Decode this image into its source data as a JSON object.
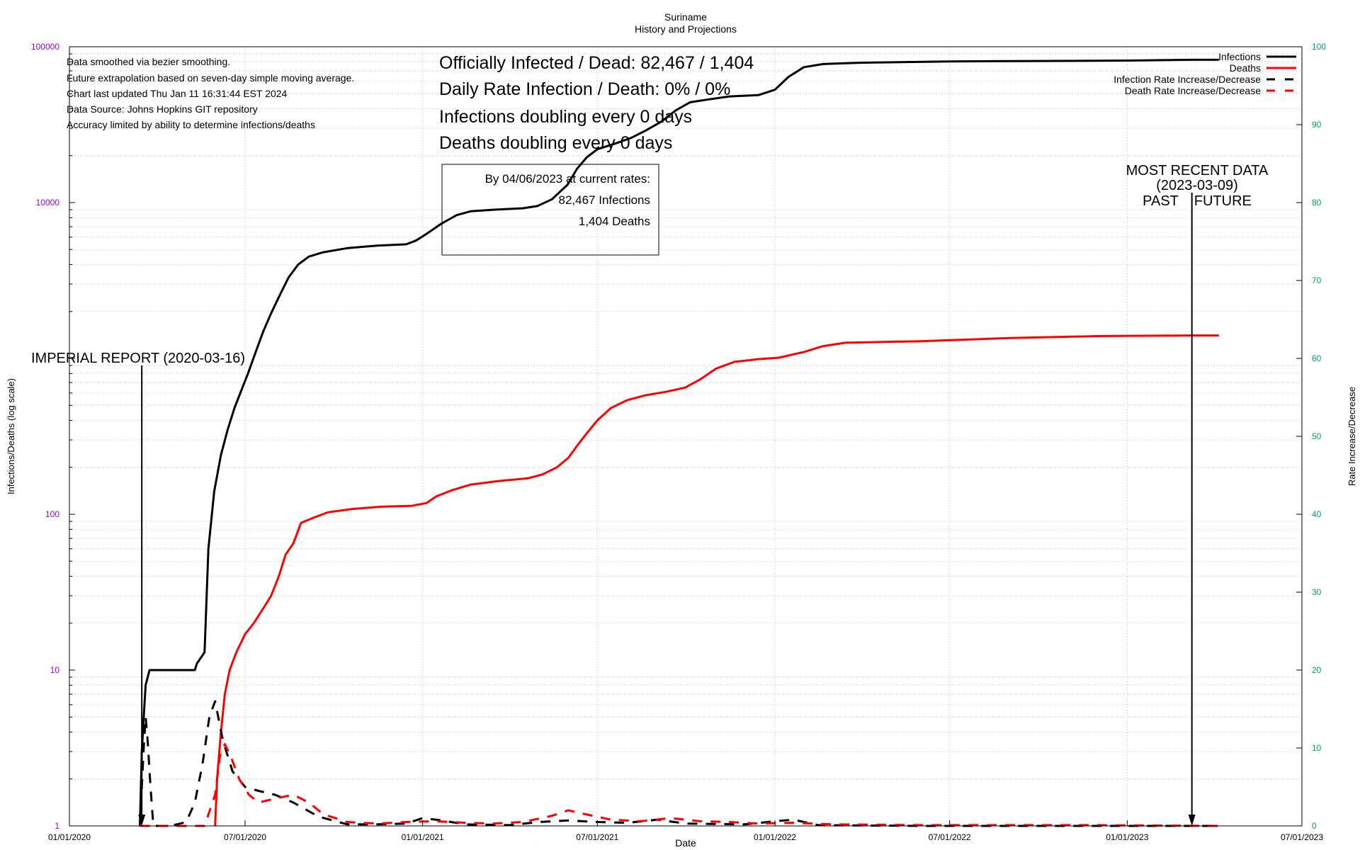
{
  "chart_data": {
    "type": "line",
    "title": "Suriname",
    "subtitle": "History and Projections",
    "xlabel": "Date",
    "ylabel": "Infections/Deaths (log scale)",
    "y2label": "Rate Increase/Decrease",
    "y_scale": "log",
    "ylim": [
      1,
      100000
    ],
    "y2lim": [
      0,
      100
    ],
    "xlim": [
      "2020-01-01",
      "2023-07-01"
    ],
    "x_ticks": [
      "01/01/2020",
      "07/01/2020",
      "01/01/2021",
      "07/01/2021",
      "01/01/2022",
      "07/01/2022",
      "01/01/2023",
      "07/01/2023"
    ],
    "y_ticks": [
      1,
      10,
      100,
      1000,
      10000,
      100000
    ],
    "y_tick_labels": [
      "1",
      "10",
      "100",
      "",
      "10000",
      "100000"
    ],
    "y2_ticks": [
      0,
      10,
      20,
      30,
      40,
      50,
      60,
      70,
      80,
      90,
      100
    ],
    "colors": {
      "infections": "#000000",
      "deaths": "#ff0000",
      "left_axis_ticks": "#9400d3",
      "right_axis_ticks": "#009e73"
    },
    "grid": true,
    "legend_position": "top-right",
    "series": [
      {
        "name": "Infections",
        "axis": "left",
        "style": "solid",
        "color": "#000000",
        "points": [
          [
            "2020-03-14",
            1
          ],
          [
            "2020-03-16",
            3
          ],
          [
            "2020-03-18",
            5
          ],
          [
            "2020-03-20",
            8
          ],
          [
            "2020-03-24",
            10
          ],
          [
            "2020-05-10",
            10
          ],
          [
            "2020-05-12",
            11
          ],
          [
            "2020-05-20",
            13
          ],
          [
            "2020-05-24",
            60
          ],
          [
            "2020-05-30",
            140
          ],
          [
            "2020-06-06",
            240
          ],
          [
            "2020-06-13",
            350
          ],
          [
            "2020-06-20",
            480
          ],
          [
            "2020-06-27",
            620
          ],
          [
            "2020-07-04",
            800
          ],
          [
            "2020-07-12",
            1100
          ],
          [
            "2020-07-20",
            1500
          ],
          [
            "2020-07-28",
            1950
          ],
          [
            "2020-08-06",
            2550
          ],
          [
            "2020-08-15",
            3300
          ],
          [
            "2020-08-25",
            4000
          ],
          [
            "2020-09-05",
            4500
          ],
          [
            "2020-09-20",
            4800
          ],
          [
            "2020-10-15",
            5100
          ],
          [
            "2020-11-15",
            5300
          ],
          [
            "2020-12-15",
            5400
          ],
          [
            "2020-12-25",
            5700
          ],
          [
            "2021-01-05",
            6300
          ],
          [
            "2021-01-20",
            7300
          ],
          [
            "2021-02-05",
            8300
          ],
          [
            "2021-02-20",
            8800
          ],
          [
            "2021-03-15",
            9000
          ],
          [
            "2021-04-15",
            9200
          ],
          [
            "2021-04-30",
            9500
          ],
          [
            "2021-05-15",
            10500
          ],
          [
            "2021-05-31",
            13000
          ],
          [
            "2021-06-10",
            16500
          ],
          [
            "2021-06-20",
            19500
          ],
          [
            "2021-07-01",
            22000
          ],
          [
            "2021-07-20",
            24000
          ],
          [
            "2021-08-05",
            26000
          ],
          [
            "2021-08-20",
            29000
          ],
          [
            "2021-09-05",
            33000
          ],
          [
            "2021-09-20",
            39000
          ],
          [
            "2021-10-05",
            44000
          ],
          [
            "2021-10-25",
            46000
          ],
          [
            "2021-11-15",
            48000
          ],
          [
            "2021-12-15",
            49000
          ],
          [
            "2022-01-01",
            53000
          ],
          [
            "2022-01-15",
            64000
          ],
          [
            "2022-01-31",
            74000
          ],
          [
            "2022-02-20",
            77500
          ],
          [
            "2022-04-01",
            79000
          ],
          [
            "2022-07-01",
            80500
          ],
          [
            "2022-10-01",
            81000
          ],
          [
            "2023-01-01",
            81500
          ],
          [
            "2023-03-09",
            82467
          ],
          [
            "2023-04-06",
            82467
          ]
        ]
      },
      {
        "name": "Deaths",
        "axis": "left",
        "style": "solid",
        "color": "#ff0000",
        "points": [
          [
            "2020-05-31",
            1
          ],
          [
            "2020-06-02",
            2
          ],
          [
            "2020-06-06",
            4
          ],
          [
            "2020-06-10",
            7
          ],
          [
            "2020-06-15",
            10
          ],
          [
            "2020-06-22",
            13
          ],
          [
            "2020-07-01",
            17
          ],
          [
            "2020-07-10",
            20
          ],
          [
            "2020-07-20",
            25
          ],
          [
            "2020-07-28",
            30
          ],
          [
            "2020-08-05",
            40
          ],
          [
            "2020-08-12",
            55
          ],
          [
            "2020-08-20",
            65
          ],
          [
            "2020-08-28",
            88
          ],
          [
            "2020-09-10",
            95
          ],
          [
            "2020-09-25",
            103
          ],
          [
            "2020-10-20",
            108
          ],
          [
            "2020-11-20",
            112
          ],
          [
            "2020-12-20",
            113
          ],
          [
            "2021-01-05",
            118
          ],
          [
            "2021-01-15",
            130
          ],
          [
            "2021-02-01",
            143
          ],
          [
            "2021-02-20",
            155
          ],
          [
            "2021-03-20",
            163
          ],
          [
            "2021-04-20",
            170
          ],
          [
            "2021-05-05",
            180
          ],
          [
            "2021-05-20",
            200
          ],
          [
            "2021-06-01",
            230
          ],
          [
            "2021-06-10",
            275
          ],
          [
            "2021-06-20",
            330
          ],
          [
            "2021-07-01",
            400
          ],
          [
            "2021-07-15",
            480
          ],
          [
            "2021-08-01",
            540
          ],
          [
            "2021-08-20",
            580
          ],
          [
            "2021-09-10",
            610
          ],
          [
            "2021-09-30",
            650
          ],
          [
            "2021-10-15",
            730
          ],
          [
            "2021-11-01",
            860
          ],
          [
            "2021-11-20",
            950
          ],
          [
            "2021-12-15",
            990
          ],
          [
            "2022-01-05",
            1010
          ],
          [
            "2022-01-31",
            1100
          ],
          [
            "2022-02-20",
            1200
          ],
          [
            "2022-03-15",
            1260
          ],
          [
            "2022-06-01",
            1290
          ],
          [
            "2022-09-01",
            1350
          ],
          [
            "2022-12-01",
            1390
          ],
          [
            "2023-03-09",
            1404
          ],
          [
            "2023-04-06",
            1404
          ]
        ]
      },
      {
        "name": "Infection Rate Increase/Decrease",
        "axis": "right",
        "style": "dashed",
        "color": "#000000",
        "points": [
          [
            "2020-03-14",
            0
          ],
          [
            "2020-03-16",
            5
          ],
          [
            "2020-03-18",
            10
          ],
          [
            "2020-03-20",
            14
          ],
          [
            "2020-03-22",
            11
          ],
          [
            "2020-03-25",
            5
          ],
          [
            "2020-03-28",
            0
          ],
          [
            "2020-04-15",
            0
          ],
          [
            "2020-05-01",
            0.5
          ],
          [
            "2020-05-10",
            3
          ],
          [
            "2020-05-18",
            8
          ],
          [
            "2020-05-25",
            14
          ],
          [
            "2020-05-31",
            16
          ],
          [
            "2020-06-08",
            11
          ],
          [
            "2020-06-18",
            7
          ],
          [
            "2020-07-01",
            5
          ],
          [
            "2020-07-15",
            4.5
          ],
          [
            "2020-08-01",
            4
          ],
          [
            "2020-08-20",
            3
          ],
          [
            "2020-09-15",
            1.2
          ],
          [
            "2020-10-15",
            0.2
          ],
          [
            "2020-11-15",
            0.2
          ],
          [
            "2020-12-15",
            0.3
          ],
          [
            "2021-01-01",
            1
          ],
          [
            "2021-01-15",
            0.8
          ],
          [
            "2021-02-15",
            0.2
          ],
          [
            "2021-04-01",
            0.1
          ],
          [
            "2021-05-01",
            0.5
          ],
          [
            "2021-06-01",
            0.7
          ],
          [
            "2021-07-01",
            0.5
          ],
          [
            "2021-08-01",
            0.4
          ],
          [
            "2021-09-01",
            0.8
          ],
          [
            "2021-10-01",
            0.3
          ],
          [
            "2021-12-01",
            0.2
          ],
          [
            "2022-01-01",
            0.6
          ],
          [
            "2022-01-20",
            0.8
          ],
          [
            "2022-02-15",
            0.1
          ],
          [
            "2022-06-01",
            0
          ],
          [
            "2022-12-01",
            0
          ],
          [
            "2023-04-06",
            0
          ]
        ]
      },
      {
        "name": "Death Rate Increase/Decrease",
        "axis": "right",
        "style": "dashed",
        "color": "#ff0000",
        "points": [
          [
            "2020-03-14",
            0
          ],
          [
            "2020-05-20",
            0
          ],
          [
            "2020-05-31",
            4
          ],
          [
            "2020-06-05",
            9
          ],
          [
            "2020-06-10",
            10.5
          ],
          [
            "2020-06-16",
            9
          ],
          [
            "2020-06-25",
            6
          ],
          [
            "2020-07-05",
            4
          ],
          [
            "2020-07-15",
            3
          ],
          [
            "2020-08-01",
            3.5
          ],
          [
            "2020-08-20",
            4
          ],
          [
            "2020-09-05",
            3
          ],
          [
            "2020-09-20",
            1.5
          ],
          [
            "2020-10-15",
            0.5
          ],
          [
            "2020-11-15",
            0.3
          ],
          [
            "2020-12-15",
            0.5
          ],
          [
            "2021-01-15",
            0.6
          ],
          [
            "2021-02-15",
            0.4
          ],
          [
            "2021-03-15",
            0.3
          ],
          [
            "2021-04-15",
            0.5
          ],
          [
            "2021-05-15",
            1.3
          ],
          [
            "2021-06-01",
            2
          ],
          [
            "2021-06-15",
            1.6
          ],
          [
            "2021-07-15",
            0.8
          ],
          [
            "2021-08-15",
            0.6
          ],
          [
            "2021-09-15",
            1
          ],
          [
            "2021-10-15",
            0.6
          ],
          [
            "2021-11-15",
            0.5
          ],
          [
            "2021-12-15",
            0.3
          ],
          [
            "2022-01-20",
            0.4
          ],
          [
            "2022-03-01",
            0.2
          ],
          [
            "2022-06-01",
            0.1
          ],
          [
            "2022-12-01",
            0.1
          ],
          [
            "2023-04-06",
            0
          ]
        ]
      }
    ],
    "annotations": {
      "notes": [
        "Data smoothed via bezier smoothing.",
        "Future extrapolation based on seven-day simple moving average.",
        "Chart last updated Thu Jan 11 16:31:44 EST 2024",
        "Data Source: Johns Hopkins GIT repository",
        "Accuracy limited by ability to determine infections/deaths"
      ],
      "stats": [
        "Officially Infected / Dead:  82,467 / 1,404",
        "Daily Rate Infection / Death:  0% / 0%",
        "Infections doubling every 0 days",
        "Deaths doubling every 0 days"
      ],
      "projection_box": [
        "By 04/06/2023 at current rates:",
        "82,467 Infections",
        "1,404 Deaths"
      ],
      "imperial_report": {
        "date": "2020-03-16",
        "label": "IMPERIAL REPORT (2020-03-16)"
      },
      "most_recent": {
        "date": "2023-03-09",
        "lines": [
          "MOST RECENT DATA",
          "(2023-03-09)",
          "PAST    FUTURE"
        ]
      }
    }
  }
}
